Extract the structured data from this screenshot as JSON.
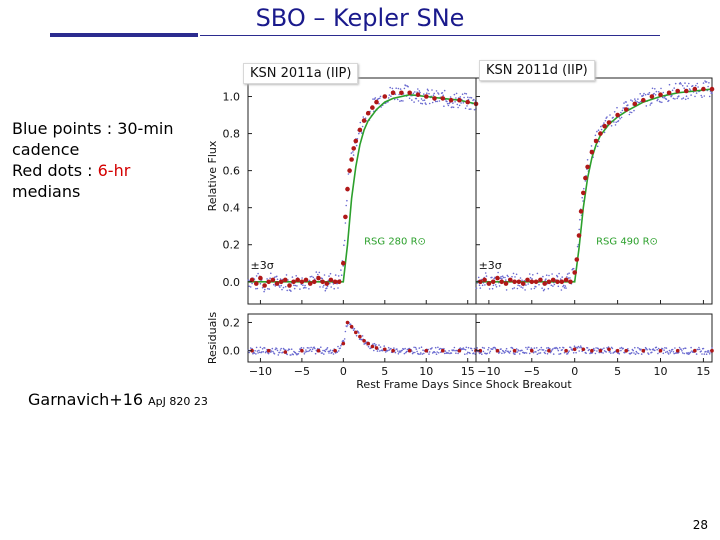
{
  "slide": {
    "title": "SBO – Kepler SNe",
    "note_line1": "Blue points : 30-min",
    "note_line2": "cadence",
    "note_line3_prefix": "Red dots : ",
    "note_line3_red": "6-hr",
    "note_line4": "medians",
    "citation_main": "Garnavich+16 ",
    "citation_small": "ApJ 820 23",
    "page_number": "28"
  },
  "colors": {
    "title": "#1a1a8c",
    "rule": "#2b2b8f",
    "highlight": "#d40000",
    "raw_points": "#6a6ad0",
    "medians": "#b01818",
    "model": "#2ca02c"
  },
  "chart_data": {
    "type": "scatter",
    "xlabel": "Rest Frame Days Since Shock Breakout",
    "ylabel_top": "Relative Flux",
    "ylabel_bottom": "Residuals",
    "xlim": [
      -11.5,
      16
    ],
    "ylim_top": [
      -0.12,
      1.1
    ],
    "ylim_bottom": [
      -0.08,
      0.26
    ],
    "x_ticks": [
      "−10",
      "−5",
      "0",
      "5",
      "10",
      "15"
    ],
    "y_ticks_top": [
      "0.0",
      "0.2",
      "0.4",
      "0.6",
      "0.8",
      "1.0"
    ],
    "y_ticks_bottom": [
      "0.0",
      "0.2"
    ],
    "error_label": "±3σ",
    "panels": [
      {
        "name": "KSN 2011a (IIP)",
        "model_label": "RSG 280 R⊙",
        "medians": [
          [
            -11,
            0.01
          ],
          [
            -10.5,
            -0.01
          ],
          [
            -10,
            0.02
          ],
          [
            -9.5,
            -0.02
          ],
          [
            -9,
            0.0
          ],
          [
            -8.5,
            0.01
          ],
          [
            -8,
            -0.01
          ],
          [
            -7.5,
            0.0
          ],
          [
            -7,
            0.01
          ],
          [
            -6.5,
            -0.02
          ],
          [
            -6,
            0.0
          ],
          [
            -5.5,
            0.01
          ],
          [
            -5,
            0.0
          ],
          [
            -4.5,
            0.01
          ],
          [
            -4,
            -0.01
          ],
          [
            -3.5,
            0.0
          ],
          [
            -3,
            0.02
          ],
          [
            -2.5,
            0.0
          ],
          [
            -2,
            -0.01
          ],
          [
            -1.5,
            0.01
          ],
          [
            -1,
            0.0
          ],
          [
            -0.5,
            0.0
          ],
          [
            0,
            0.1
          ],
          [
            0.25,
            0.35
          ],
          [
            0.5,
            0.5
          ],
          [
            0.75,
            0.6
          ],
          [
            1,
            0.66
          ],
          [
            1.25,
            0.72
          ],
          [
            1.5,
            0.76
          ],
          [
            2,
            0.82
          ],
          [
            2.5,
            0.87
          ],
          [
            3,
            0.91
          ],
          [
            3.5,
            0.94
          ],
          [
            4,
            0.97
          ],
          [
            5,
            1.0
          ],
          [
            6,
            1.02
          ],
          [
            7,
            1.02
          ],
          [
            8,
            1.02
          ],
          [
            9,
            1.01
          ],
          [
            10,
            1.0
          ],
          [
            11,
            0.99
          ],
          [
            12,
            0.99
          ],
          [
            13,
            0.98
          ],
          [
            14,
            0.98
          ],
          [
            15,
            0.97
          ],
          [
            16,
            0.96
          ]
        ],
        "model": [
          [
            -11.5,
            0.0
          ],
          [
            0,
            0.0
          ],
          [
            0.5,
            0.2
          ],
          [
            1,
            0.45
          ],
          [
            1.5,
            0.62
          ],
          [
            2,
            0.74
          ],
          [
            2.5,
            0.82
          ],
          [
            3,
            0.87
          ],
          [
            4,
            0.93
          ],
          [
            5,
            0.97
          ],
          [
            6,
            0.99
          ],
          [
            8,
            1.01
          ],
          [
            10,
            1.0
          ],
          [
            12,
            0.99
          ],
          [
            14,
            0.98
          ],
          [
            16,
            0.96
          ]
        ],
        "residuals": [
          [
            -11,
            0.0
          ],
          [
            -9,
            0.0
          ],
          [
            -7,
            -0.01
          ],
          [
            -5,
            0.0
          ],
          [
            -3,
            0.0
          ],
          [
            -1,
            0.0
          ],
          [
            0,
            0.05
          ],
          [
            0.5,
            0.2
          ],
          [
            1,
            0.17
          ],
          [
            1.5,
            0.13
          ],
          [
            2,
            0.1
          ],
          [
            2.5,
            0.07
          ],
          [
            3,
            0.05
          ],
          [
            3.5,
            0.03
          ],
          [
            4,
            0.02
          ],
          [
            5,
            0.01
          ],
          [
            6,
            0.0
          ],
          [
            8,
            0.0
          ],
          [
            10,
            0.0
          ],
          [
            12,
            0.0
          ],
          [
            14,
            0.0
          ],
          [
            16,
            0.0
          ]
        ]
      },
      {
        "name": "KSN 2011d (IIP)",
        "model_label": "RSG 490 R⊙",
        "medians": [
          [
            -11,
            0.0
          ],
          [
            -10.5,
            0.01
          ],
          [
            -10,
            -0.01
          ],
          [
            -9.5,
            0.0
          ],
          [
            -9,
            0.02
          ],
          [
            -8.5,
            0.0
          ],
          [
            -8,
            -0.01
          ],
          [
            -7.5,
            0.01
          ],
          [
            -7,
            0.0
          ],
          [
            -6.5,
            0.0
          ],
          [
            -6,
            -0.01
          ],
          [
            -5.5,
            0.01
          ],
          [
            -5,
            0.0
          ],
          [
            -4.5,
            0.0
          ],
          [
            -4,
            0.01
          ],
          [
            -3.5,
            -0.01
          ],
          [
            -3,
            0.0
          ],
          [
            -2.5,
            0.01
          ],
          [
            -2,
            0.0
          ],
          [
            -1.5,
            0.0
          ],
          [
            -1,
            0.01
          ],
          [
            -0.5,
            0.0
          ],
          [
            0,
            0.05
          ],
          [
            0.25,
            0.12
          ],
          [
            0.5,
            0.25
          ],
          [
            0.75,
            0.38
          ],
          [
            1,
            0.48
          ],
          [
            1.25,
            0.56
          ],
          [
            1.5,
            0.62
          ],
          [
            2,
            0.7
          ],
          [
            2.5,
            0.76
          ],
          [
            3,
            0.8
          ],
          [
            3.5,
            0.84
          ],
          [
            4,
            0.86
          ],
          [
            5,
            0.9
          ],
          [
            6,
            0.93
          ],
          [
            7,
            0.96
          ],
          [
            8,
            0.98
          ],
          [
            9,
            1.0
          ],
          [
            10,
            1.01
          ],
          [
            11,
            1.02
          ],
          [
            12,
            1.03
          ],
          [
            13,
            1.03
          ],
          [
            14,
            1.04
          ],
          [
            15,
            1.04
          ],
          [
            16,
            1.04
          ]
        ],
        "model": [
          [
            -11.5,
            0.0
          ],
          [
            0,
            0.0
          ],
          [
            0.5,
            0.18
          ],
          [
            1,
            0.4
          ],
          [
            1.5,
            0.56
          ],
          [
            2,
            0.67
          ],
          [
            2.5,
            0.74
          ],
          [
            3,
            0.79
          ],
          [
            4,
            0.85
          ],
          [
            5,
            0.89
          ],
          [
            6,
            0.92
          ],
          [
            8,
            0.97
          ],
          [
            10,
            1.0
          ],
          [
            12,
            1.02
          ],
          [
            14,
            1.03
          ],
          [
            16,
            1.04
          ]
        ],
        "residuals": [
          [
            -11,
            0.0
          ],
          [
            -9,
            0.0
          ],
          [
            -7,
            0.0
          ],
          [
            -5,
            0.0
          ],
          [
            -3,
            0.0
          ],
          [
            -1,
            0.0
          ],
          [
            0,
            0.01
          ],
          [
            1,
            0.01
          ],
          [
            2,
            0.0
          ],
          [
            3,
            0.0
          ],
          [
            4,
            0.01
          ],
          [
            5,
            0.0
          ],
          [
            6,
            0.0
          ],
          [
            8,
            0.0
          ],
          [
            10,
            0.0
          ],
          [
            12,
            0.0
          ],
          [
            14,
            0.0
          ],
          [
            16,
            0.0
          ]
        ]
      }
    ]
  }
}
